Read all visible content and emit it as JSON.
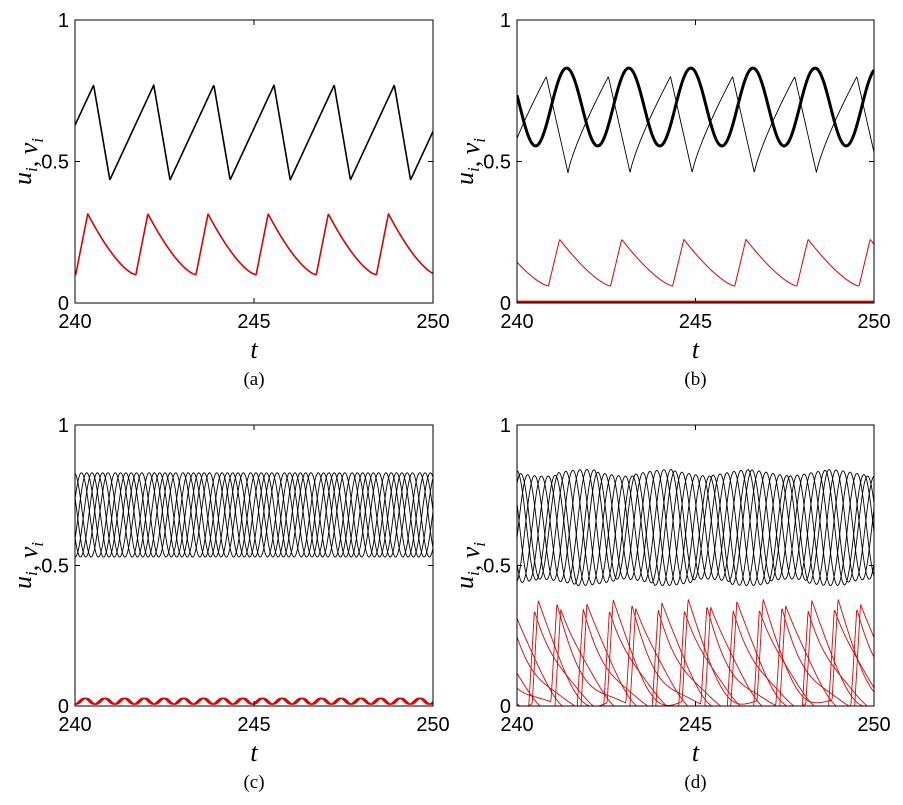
{
  "figure": {
    "panels": [
      "a",
      "b",
      "c",
      "d"
    ]
  },
  "chart_data": [
    {
      "type": "line",
      "panel": "(a)",
      "xlabel": "t",
      "ylabel": "u_i, v_i",
      "xlim": [
        240,
        250
      ],
      "ylim": [
        0,
        1
      ],
      "xticks": [
        "240",
        "245",
        "250"
      ],
      "yticks": [
        "0",
        "0.5",
        "1"
      ],
      "series": [
        {
          "color": "#000000",
          "width": 1.6,
          "kind": "relax",
          "period": 1.68,
          "phase": 240.52,
          "peak": 0.77,
          "trough": 0.435,
          "fall_frac": 0.27,
          "power": 1.0,
          "count": 1
        },
        {
          "color": "#e00000",
          "width": 1.6,
          "kind": "spike",
          "period": 1.68,
          "phase": 241.7,
          "peak": 0.315,
          "trough": 0.1,
          "rise_frac": 0.2,
          "power": 1.5,
          "count": 1
        }
      ]
    },
    {
      "type": "line",
      "panel": "(b)",
      "xlabel": "t",
      "ylabel": "u_i, v_i",
      "xlim": [
        240,
        250
      ],
      "ylim": [
        0,
        1
      ],
      "xticks": [
        "240",
        "245",
        "250"
      ],
      "yticks": [
        "0",
        "0.5",
        "1"
      ],
      "series": [
        {
          "color": "#000000",
          "width": 3.0,
          "kind": "smooth",
          "period": 1.74,
          "phase": 241.39,
          "peak": 0.83,
          "trough": 0.555,
          "count": 1
        },
        {
          "color": "#000000",
          "width": 0.9,
          "kind": "relax",
          "period": 1.74,
          "phase": 240.82,
          "peak": 0.8,
          "trough": 0.46,
          "fall_frac": 0.35,
          "power": 0.8,
          "count": 1
        },
        {
          "color": "#e00000",
          "width": 1.0,
          "kind": "spike",
          "period": 1.74,
          "phase": 240.88,
          "peak": 0.225,
          "trough": 0.06,
          "rise_frac": 0.18,
          "power": 1.4,
          "count": 1
        },
        {
          "color": "#e00000",
          "width": 2.6,
          "kind": "flat",
          "value": 0.004,
          "count": 1
        }
      ]
    },
    {
      "type": "line",
      "panel": "(c)",
      "xlabel": "t",
      "ylabel": "u_i, v_i",
      "xlim": [
        240,
        250
      ],
      "ylim": [
        0,
        1
      ],
      "xticks": [
        "240",
        "245",
        "250"
      ],
      "yticks": [
        "0",
        "0.5",
        "1"
      ],
      "series": [
        {
          "color": "#000000",
          "width": 0.9,
          "kind": "smooth",
          "period": 0.945,
          "phase": 240.18,
          "peak": 0.83,
          "trough": 0.53,
          "count": 6,
          "spread": 0.157
        },
        {
          "color": "#e00000",
          "width": 0.8,
          "kind": "band",
          "period": 0.55,
          "phase": 240.1,
          "peak": 0.028,
          "trough": 0.006,
          "count": 6,
          "spread": 0.09
        }
      ]
    },
    {
      "type": "line",
      "panel": "(d)",
      "xlabel": "t",
      "ylabel": "u_i, v_i",
      "xlim": [
        240,
        250
      ],
      "ylim": [
        0,
        1
      ],
      "xticks": [
        "240",
        "245",
        "250"
      ],
      "yticks": [
        "0",
        "0.5",
        "1"
      ],
      "series": [
        {
          "color": "#000000",
          "width": 0.9,
          "kind": "smooth",
          "period": 1.08,
          "phase": 240.1,
          "peak": 0.83,
          "trough": 0.44,
          "count": 6,
          "spread": 0.18,
          "jitter": 0.06
        },
        {
          "color": "#e00000",
          "width": 0.9,
          "kind": "spike",
          "period": 2.1,
          "phase": 240.95,
          "peak": 0.36,
          "trough": 0.0,
          "rise_frac": 0.08,
          "power": 2.2,
          "count": 6,
          "spread": 0.35,
          "jitter": 0.12
        }
      ]
    }
  ]
}
